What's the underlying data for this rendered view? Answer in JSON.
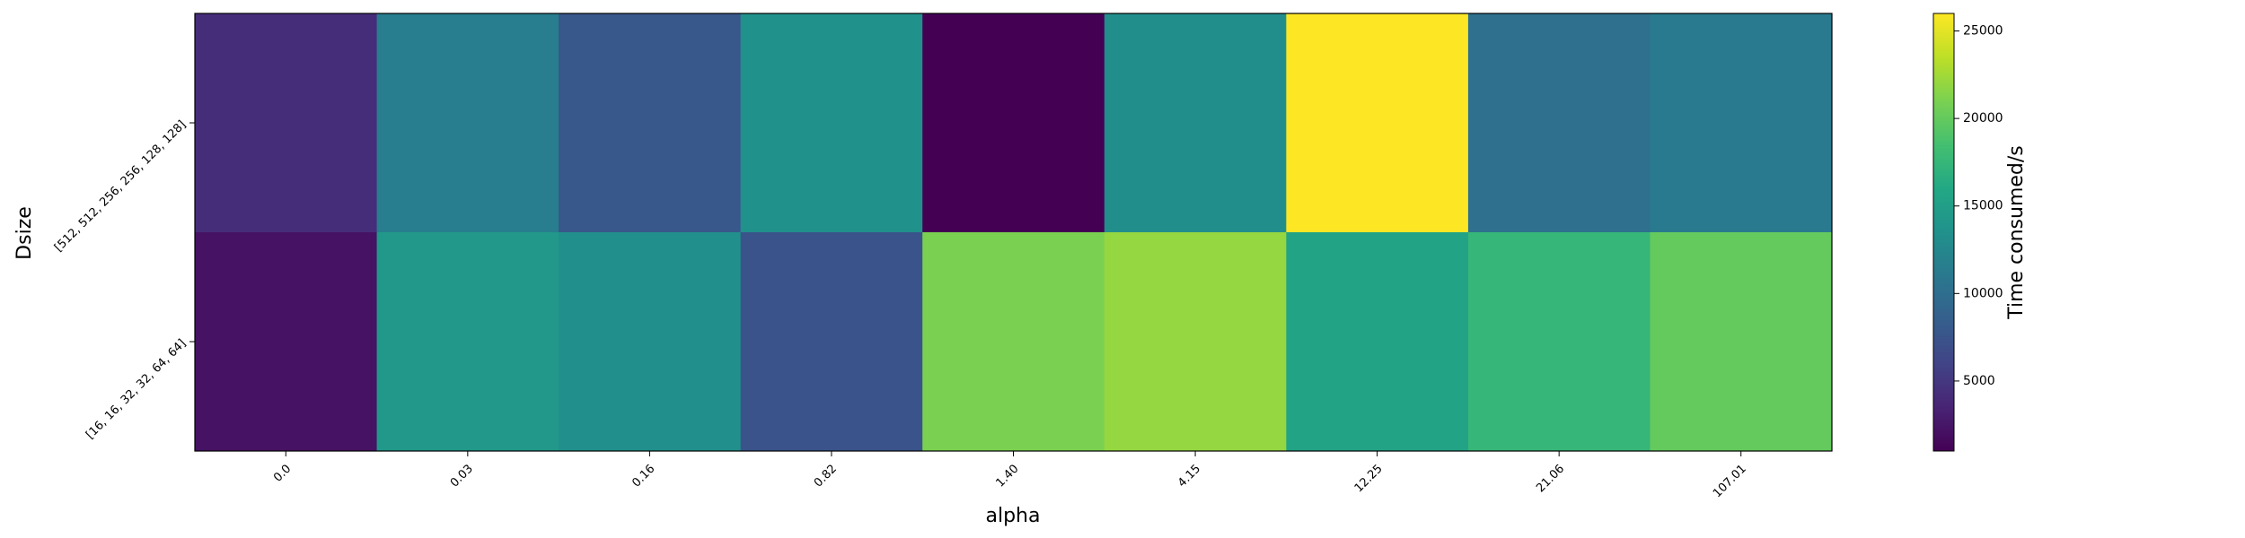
{
  "chart_data": {
    "type": "heatmap",
    "title": "",
    "xlabel": "alpha",
    "ylabel": "Dsize",
    "x_categories": [
      "0.0",
      "0.03",
      "0.16",
      "0.82",
      "1.40",
      "4.15",
      "12.25",
      "21.06",
      "107.01"
    ],
    "y_categories": [
      "[512, 512, 256, 256, 128, 128]",
      "[16, 16, 32, 32, 64, 64]"
    ],
    "values": [
      [
        4200,
        11500,
        7800,
        13500,
        1000,
        13200,
        26000,
        10200,
        11200
      ],
      [
        2200,
        14300,
        13400,
        7500,
        21000,
        22000,
        15500,
        17500,
        20000
      ]
    ],
    "colorbar": {
      "label": "Time consumed/s",
      "min": 1000,
      "max": 26000,
      "ticks": [
        5000,
        10000,
        15000,
        20000,
        25000
      ],
      "colormap": "viridis"
    },
    "grid": false
  }
}
